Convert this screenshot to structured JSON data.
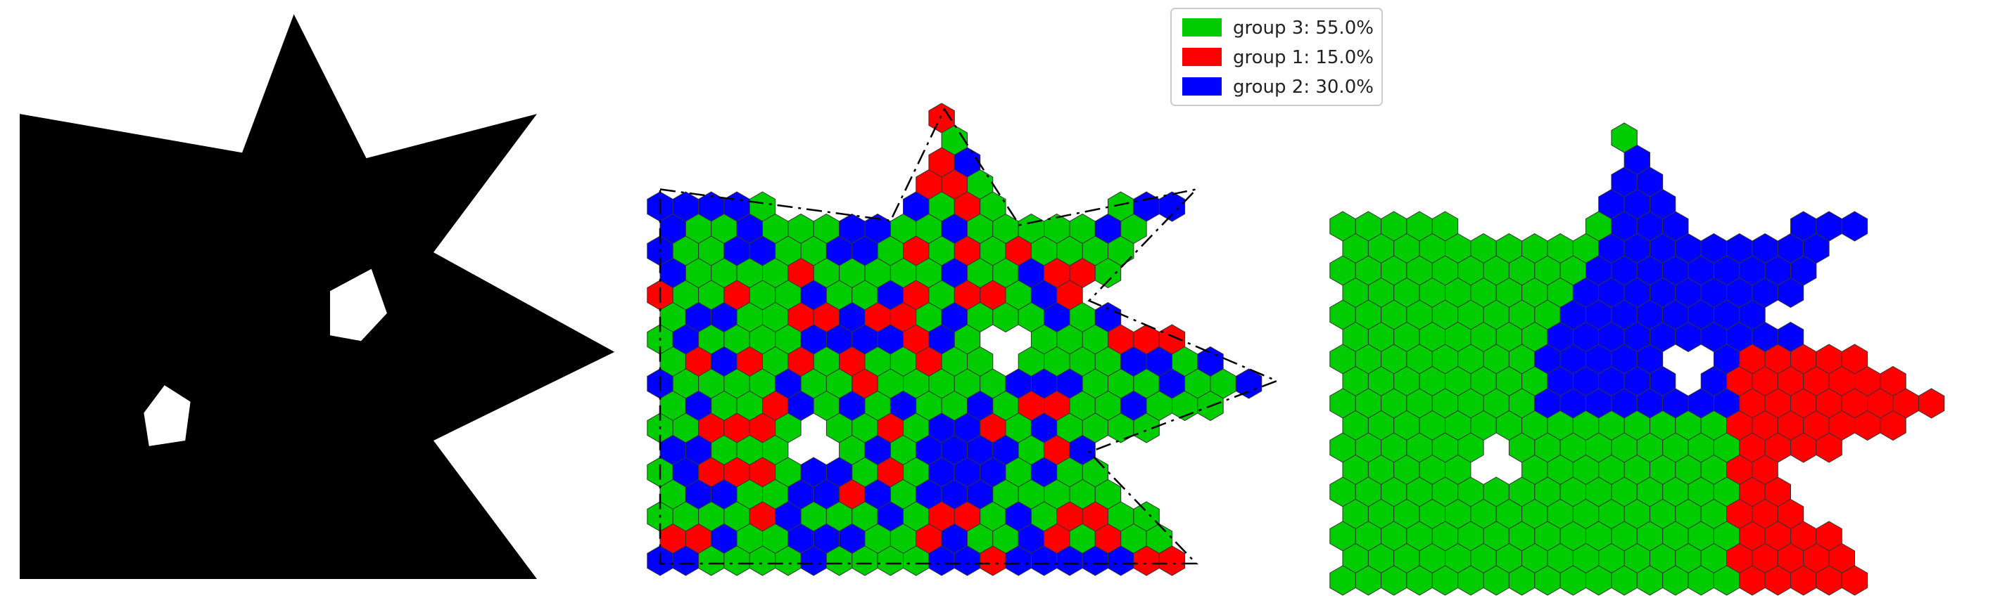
{
  "figure": {
    "panels": [
      "shape-mask",
      "random-assignment",
      "clustered-assignment"
    ]
  },
  "colors": {
    "group_3": "#00cc00",
    "group_1": "#ff0000",
    "group_2": "#0000ff",
    "hex_edge": "#333333",
    "mask": "#000000",
    "background": "#ffffff"
  },
  "legend": {
    "placement": "top-center",
    "entries": [
      {
        "key": "group_3",
        "label": "group 3: 55.0%"
      },
      {
        "key": "group_1",
        "label": "group 1: 15.0%"
      },
      {
        "key": "group_2",
        "label": "group 2: 30.0%"
      }
    ]
  },
  "chart_data": {
    "type": "hex-grid",
    "groups": [
      {
        "name": "group 3",
        "share_percent": 55.0
      },
      {
        "name": "group 1",
        "share_percent": 15.0
      },
      {
        "name": "group 2",
        "share_percent": 30.0
      }
    ]
  }
}
